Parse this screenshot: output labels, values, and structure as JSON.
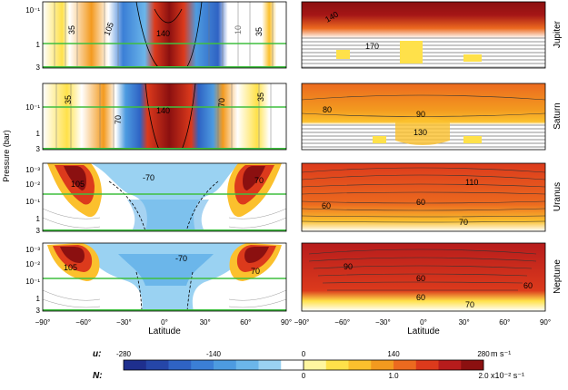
{
  "chart_data": [
    {
      "type": "heatmap",
      "panels": [
        {
          "planet": "Jupiter",
          "left_labels": [
            "35",
            "105",
            "140",
            "35",
            "10"
          ],
          "right_labels": [
            "170",
            "140"
          ]
        },
        {
          "planet": "Saturn",
          "left_labels": [
            "35",
            "70",
            "140",
            "70",
            "35"
          ],
          "right_labels": [
            "80",
            "90",
            "130"
          ]
        },
        {
          "planet": "Uranus",
          "left_labels": [
            "105",
            "-70",
            "70"
          ],
          "right_labels": [
            "110",
            "60",
            "60",
            "70"
          ]
        },
        {
          "planet": "Neptune",
          "left_labels": [
            "105",
            "-70",
            "70"
          ],
          "right_labels": [
            "90",
            "60",
            "60",
            "60",
            "70"
          ]
        }
      ],
      "ylabel": "Pressure (bar)",
      "xlabel": "Latitude",
      "xticks": [
        "−90°",
        "−60°",
        "−30°",
        "0°",
        "30°",
        "60°",
        "90°"
      ],
      "xlim": [
        -90,
        90
      ],
      "yticks_panel1": [
        "10⁻¹",
        "1",
        "3"
      ],
      "yticks_panel3": [
        "10⁻³",
        "10⁻²",
        "10⁻¹",
        "1",
        "3"
      ],
      "colorbar": {
        "u_label": "u:",
        "u_ticks": [
          "-280",
          "-140",
          "0",
          "140",
          "280"
        ],
        "u_units": "m s⁻¹",
        "n_label": "N:",
        "n_ticks": [
          "0",
          "1.0",
          "2.0"
        ],
        "n_units": "x10⁻² s⁻¹",
        "colors": [
          "#1e2f8e",
          "#2546a8",
          "#2f63c4",
          "#3b7fd6",
          "#4d9be0",
          "#6bb6ea",
          "#9ad2f2",
          "#ffffff",
          "#fff6a0",
          "#ffe14a",
          "#fbc02d",
          "#f39a1f",
          "#ec6a1f",
          "#dc3a1c",
          "#b71c1c",
          "#8b1010"
        ]
      }
    }
  ]
}
